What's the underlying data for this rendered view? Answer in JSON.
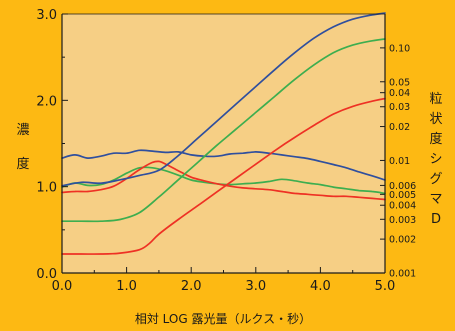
{
  "chart_data": {
    "type": "line",
    "xlabel": "相対 LOG 露光量（ルクス・秒）",
    "ylabel": "濃度",
    "ylabel_chars": [
      "濃",
      "度"
    ],
    "y2label": "粒状度シグマD",
    "y2label_chars": [
      "粒",
      "状",
      "度",
      "シ",
      "グ",
      "マ",
      "D"
    ],
    "xlim": [
      0,
      5
    ],
    "ylim": [
      0,
      3
    ],
    "y2lim": [
      0.001,
      0.2
    ],
    "y2scale": "log",
    "x_ticks": [
      "0.0",
      "1.0",
      "2.0",
      "3.0",
      "4.0",
      "5.0"
    ],
    "y_ticks": [
      "0.0",
      "1.0",
      "2.0",
      "3.0"
    ],
    "y2_ticks": [
      "0.10",
      "0.05",
      "0.04",
      "0.03",
      "0.02",
      "0.01",
      "0.006",
      "0.005",
      "0.004",
      "0.003",
      "0.002",
      "0.001"
    ],
    "grid": false,
    "legend": "none",
    "colors": {
      "plot_bg": "#F6CF85",
      "page_bg": "#FDB913",
      "blue": "#2F4F9E",
      "green": "#3DAE4F",
      "red": "#EE3124"
    },
    "series": [
      {
        "kind": "density",
        "color": "blue",
        "x": [
          0.0,
          0.3,
          0.6,
          0.9,
          1.2,
          1.5,
          1.8,
          2.1,
          2.4,
          2.7,
          3.0,
          3.3,
          3.6,
          3.9,
          4.2,
          4.5,
          4.8,
          5.0
        ],
        "y": [
          1.01,
          1.05,
          1.04,
          1.08,
          1.13,
          1.19,
          1.36,
          1.56,
          1.76,
          1.96,
          2.16,
          2.36,
          2.55,
          2.72,
          2.85,
          2.94,
          2.99,
          3.01
        ]
      },
      {
        "kind": "density",
        "color": "green",
        "x": [
          0.0,
          0.3,
          0.6,
          0.9,
          1.2,
          1.5,
          1.8,
          2.1,
          2.4,
          2.7,
          3.0,
          3.3,
          3.6,
          3.9,
          4.2,
          4.5,
          4.8,
          5.0
        ],
        "y": [
          0.6,
          0.6,
          0.6,
          0.62,
          0.7,
          0.88,
          1.08,
          1.28,
          1.48,
          1.67,
          1.86,
          2.05,
          2.24,
          2.41,
          2.55,
          2.64,
          2.69,
          2.71
        ]
      },
      {
        "kind": "density",
        "color": "red",
        "x": [
          0.0,
          0.3,
          0.6,
          0.9,
          1.2,
          1.35,
          1.5,
          1.8,
          2.1,
          2.4,
          2.7,
          3.0,
          3.3,
          3.6,
          3.9,
          4.2,
          4.5,
          4.8,
          5.0
        ],
        "y": [
          0.22,
          0.22,
          0.22,
          0.23,
          0.27,
          0.34,
          0.45,
          0.62,
          0.78,
          0.94,
          1.1,
          1.26,
          1.42,
          1.57,
          1.71,
          1.84,
          1.93,
          1.99,
          2.02
        ]
      },
      {
        "kind": "granularity",
        "color": "blue",
        "x": [
          0.0,
          0.2,
          0.4,
          0.6,
          0.8,
          1.0,
          1.2,
          1.4,
          1.6,
          1.8,
          2.0,
          2.2,
          2.4,
          2.6,
          2.8,
          3.0,
          3.2,
          3.4,
          3.6,
          3.8,
          4.0,
          4.2,
          4.4,
          4.6,
          4.8,
          5.0
        ],
        "y": [
          0.0105,
          0.0112,
          0.0105,
          0.0109,
          0.0116,
          0.0116,
          0.0123,
          0.0121,
          0.0118,
          0.0119,
          0.0112,
          0.0109,
          0.0109,
          0.0114,
          0.0116,
          0.0119,
          0.0116,
          0.0112,
          0.0108,
          0.0104,
          0.0098,
          0.0092,
          0.0086,
          0.0079,
          0.0073,
          0.0067
        ]
      },
      {
        "kind": "granularity",
        "color": "green",
        "x": [
          0.0,
          0.2,
          0.4,
          0.6,
          0.8,
          1.0,
          1.2,
          1.4,
          1.6,
          1.8,
          2.0,
          2.2,
          2.4,
          2.6,
          2.8,
          3.0,
          3.2,
          3.4,
          3.6,
          3.8,
          4.0,
          4.2,
          4.4,
          4.6,
          4.8,
          5.0
        ],
        "y": [
          0.0058,
          0.0063,
          0.006,
          0.0061,
          0.0067,
          0.0077,
          0.0086,
          0.0086,
          0.0081,
          0.0074,
          0.0067,
          0.0064,
          0.0062,
          0.0061,
          0.0062,
          0.0063,
          0.0065,
          0.0068,
          0.0066,
          0.0063,
          0.0061,
          0.0058,
          0.0056,
          0.0054,
          0.0053,
          0.0051
        ]
      },
      {
        "kind": "granularity",
        "color": "red",
        "x": [
          0.0,
          0.2,
          0.4,
          0.6,
          0.8,
          1.0,
          1.2,
          1.4,
          1.5,
          1.6,
          1.8,
          2.0,
          2.2,
          2.4,
          2.6,
          2.8,
          3.0,
          3.2,
          3.4,
          3.6,
          3.8,
          4.0,
          4.2,
          4.4,
          4.6,
          4.8,
          5.0
        ],
        "y": [
          0.0052,
          0.0053,
          0.0053,
          0.0055,
          0.0059,
          0.0069,
          0.0083,
          0.0096,
          0.0098,
          0.0093,
          0.0081,
          0.0071,
          0.0066,
          0.0062,
          0.0059,
          0.0057,
          0.0056,
          0.0055,
          0.0053,
          0.0051,
          0.005,
          0.0049,
          0.0048,
          0.0048,
          0.0047,
          0.0046,
          0.0045
        ]
      }
    ]
  }
}
